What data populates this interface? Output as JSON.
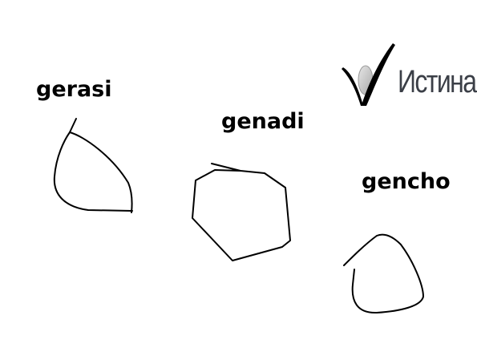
{
  "shapes": [
    {
      "label": "gerasi"
    },
    {
      "label": "genadi"
    },
    {
      "label": "gencho"
    }
  ],
  "logo": {
    "text": "Истина"
  },
  "colors": {
    "ink": "#000000",
    "logo_text": "#3b3f47",
    "logo_gradient": "#c8c8c8"
  }
}
